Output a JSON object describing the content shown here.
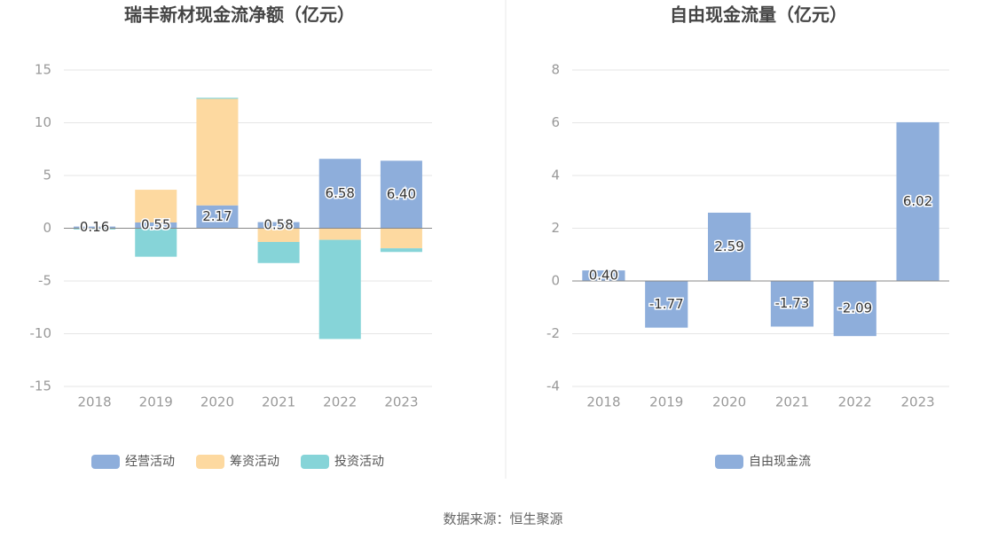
{
  "chart_data": [
    {
      "type": "bar",
      "stacked": true,
      "title": "瑞丰新材现金流净额（亿元）",
      "categories": [
        "2018",
        "2019",
        "2020",
        "2021",
        "2022",
        "2023"
      ],
      "series": [
        {
          "name": "经营活动",
          "color": "#8eaedb",
          "values": [
            0.16,
            0.55,
            2.17,
            0.58,
            6.58,
            6.4
          ],
          "value_labels": [
            "0.16",
            "0.55",
            "2.17",
            "0.58",
            "6.58",
            "6.40"
          ]
        },
        {
          "name": "筹资活动",
          "color": "#fdd9a0",
          "values": [
            0,
            3.1,
            10.1,
            -1.3,
            -1.1,
            -1.9
          ]
        },
        {
          "name": "投资活动",
          "color": "#86d4d8",
          "values": [
            -0.12,
            -2.7,
            0.1,
            -2.0,
            -9.4,
            -0.35
          ]
        }
      ],
      "ylim": [
        -15,
        15
      ],
      "yticks": [
        -15,
        -10,
        -5,
        0,
        5,
        10,
        15
      ],
      "grid": true
    },
    {
      "type": "bar",
      "title": "自由现金流量（亿元）",
      "categories": [
        "2018",
        "2019",
        "2020",
        "2021",
        "2022",
        "2023"
      ],
      "series": [
        {
          "name": "自由现金流",
          "color": "#8eaedb",
          "values": [
            0.4,
            -1.77,
            2.59,
            -1.73,
            -2.09,
            6.02
          ],
          "value_labels": [
            "0.40",
            "-1.77",
            "2.59",
            "-1.73",
            "-2.09",
            "6.02"
          ]
        }
      ],
      "ylim": [
        -4,
        8
      ],
      "yticks": [
        -4,
        -2,
        0,
        2,
        4,
        6,
        8
      ],
      "grid": true
    }
  ],
  "source": "数据来源：恒生聚源"
}
